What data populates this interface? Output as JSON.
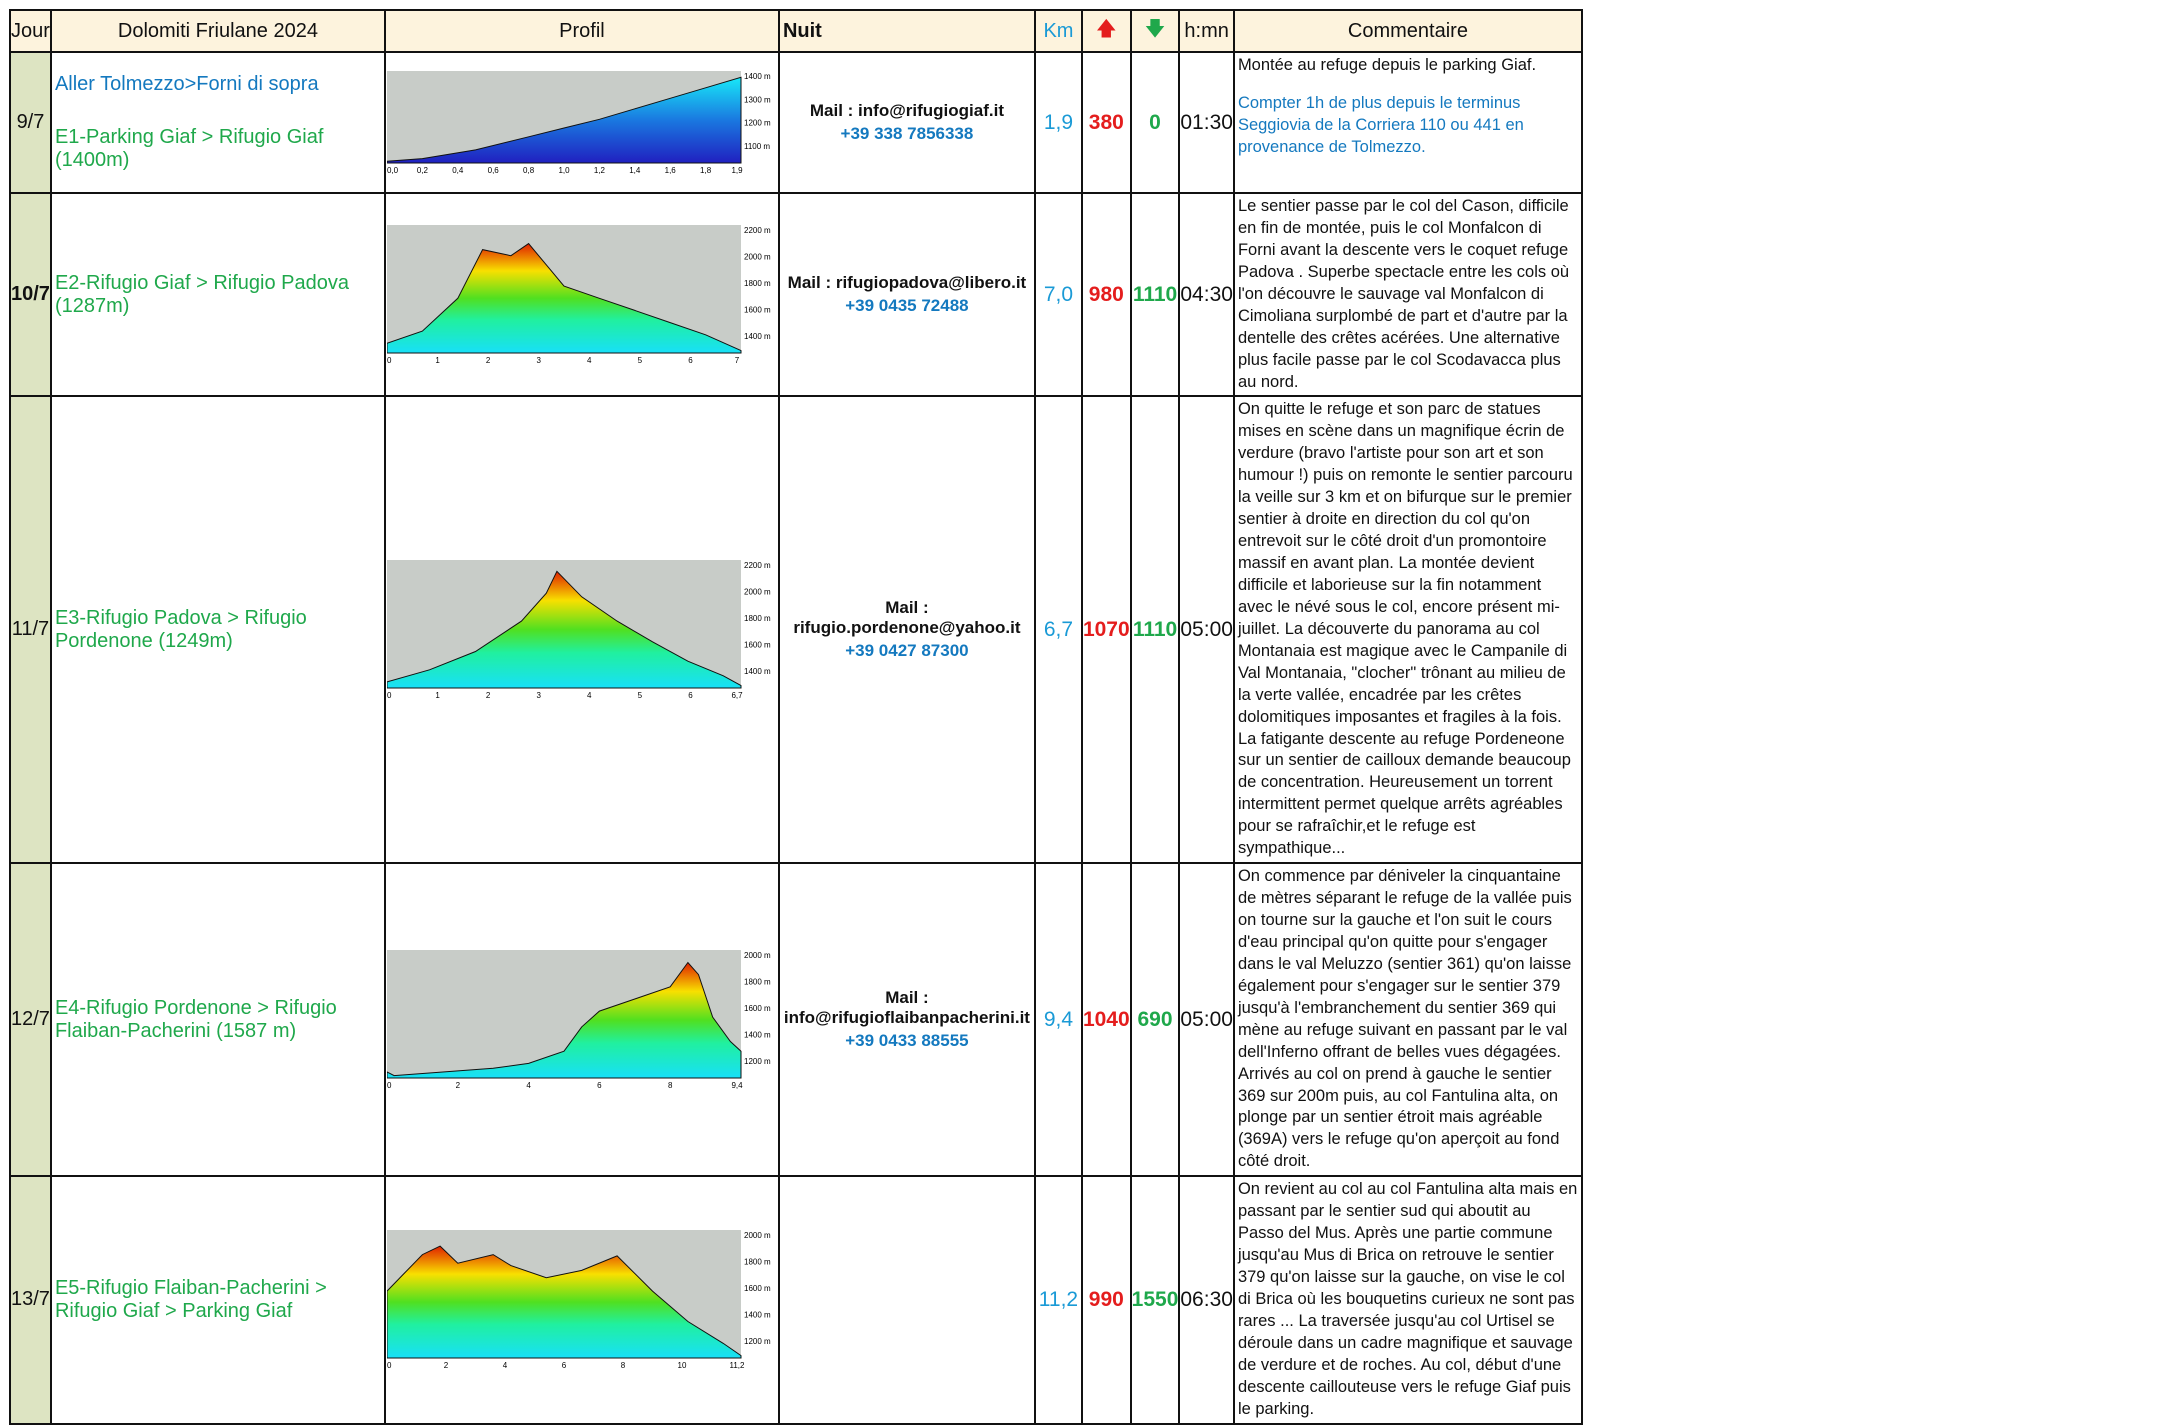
{
  "header": {
    "jour": "Jour",
    "title": "Dolomiti Friulane 2024",
    "profil": "Profil",
    "nuit": "Nuit",
    "km": "Km",
    "up_icon": "🡅",
    "down_icon": "🡇",
    "duration": "h:mn",
    "commentaire": "Commentaire"
  },
  "rows": [
    {
      "jour": "9/7",
      "aller": "Aller Tolmezzo>Forni di sopra",
      "etape": "E1-Parking Giaf > Rifugio Giaf (1400m)",
      "mail": "Mail : info@rifugiogiaf.it",
      "tel": "+39 338 7856338",
      "km": "1,9",
      "up": "380",
      "down": "0",
      "duration": "01:30",
      "comment": "Montée au refuge depuis le parking Giaf.",
      "comment_blue": "Compter 1h de plus depuis le terminus Seggiovia de la Corriera 110 ou 441 en provenance de Tolmezzo.",
      "profile": {
        "x_ticks": [
          "0,0",
          "0,2",
          "0,4",
          "0,6",
          "0,8",
          "1,0",
          "1,2",
          "1,4",
          "1,6",
          "1,8",
          "1,9"
        ],
        "y_ticks": [
          "1400 m",
          "1300 m",
          "1200 m",
          "1100 m"
        ]
      }
    },
    {
      "jour": "10/7",
      "etape": "E2-Rifugio Giaf > Rifugio Padova (1287m)",
      "mail": "Mail : rifugiopadova@libero.it",
      "tel": "+39 0435 72488",
      "km": "7,0",
      "up": "980",
      "down": "1110",
      "duration": "04:30",
      "comment": "Le sentier passe par le col del Cason, difficile en fin de montée, puis le col Monfalcon di Forni avant la descente vers le coquet refuge Padova . Superbe spectacle entre les cols où l'on découvre le sauvage val Monfalcon di Cimoliana surplombé de part et d'autre par la dentelle des crêtes acérées. Une alternative plus facile passe par le col Scodavacca  plus au nord.",
      "profile": {
        "x_ticks": [
          "0",
          "1",
          "2",
          "3",
          "4",
          "5",
          "6",
          "7"
        ],
        "y_ticks": [
          "2200 m",
          "2000 m",
          "1800 m",
          "1600 m",
          "1400 m"
        ]
      }
    },
    {
      "jour": "11/7",
      "etape": "E3-Rifugio Padova  > Rifugio Pordenone (1249m)",
      "mail": "Mail : rifugio.pordenone@yahoo.it",
      "tel": "+39 0427 87300",
      "km": "6,7",
      "up": "1070",
      "down": "1110",
      "duration": "05:00",
      "comment": "On quitte le refuge et son parc de statues mises en scène dans un magnifique écrin de verdure (bravo l'artiste pour son art et son humour !) puis on remonte le sentier parcouru la veille sur 3 km et on bifurque sur le premier sentier à droite en direction du col qu'on entrevoit sur le côté droit d'un promontoire massif en avant plan. La montée devient difficile et laborieuse sur la fin notamment avec le névé sous le col, encore présent mi-juillet. La découverte du panorama au col Montanaia est magique avec le Campanile di Val Montanaia, \"clocher\" trônant au milieu de la verte vallée, encadrée par les crêtes dolomitiques imposantes et fragiles à la fois. La fatigante descente au refuge Pordeneone sur un sentier de cailloux demande beaucoup de concentration. Heureusement un torrent intermittent permet quelque arrêts agréables pour se rafraîchir,et le refuge est sympathique...",
      "profile": {
        "x_ticks": [
          "0",
          "1",
          "2",
          "3",
          "4",
          "5",
          "6",
          "6,7"
        ],
        "y_ticks": [
          "2200 m",
          "2000 m",
          "1800 m",
          "1600 m",
          "1400 m"
        ]
      }
    },
    {
      "jour": "12/7",
      "etape": "E4-Rifugio Pordenone > Rifugio Flaiban-Pacherini (1587 m)",
      "mail": "Mail : info@rifugioflaibanpacherini.it",
      "tel": "+39 0433 88555",
      "km": "9,4",
      "up": "1040",
      "down": "690",
      "duration": "05:00",
      "comment": "On commence par déniveler la cinquantaine de mètres séparant le refuge de la vallée puis on tourne sur la gauche et l'on suit le cours d'eau principal qu'on quitte pour s'engager dans le val Meluzzo (sentier 361) qu'on laisse également pour s'engager sur le sentier 379 jusqu'à l'embranchement du sentier 369 qui mène au  refuge suivant en passant par le val dell'Inferno offrant de belles vues dégagées. Arrivés au col on prend à gauche le sentier 369 sur 200m puis, au col Fantulina alta, on plonge par un sentier étroit mais agréable (369A) vers le refuge qu'on aperçoit au fond côté droit.",
      "profile": {
        "x_ticks": [
          "0",
          "2",
          "4",
          "6",
          "8",
          "9,4"
        ],
        "y_ticks": [
          "2000 m",
          "1800 m",
          "1600 m",
          "1400 m",
          "1200 m"
        ]
      }
    },
    {
      "jour": "13/7",
      "etape": "E5-Rifugio Flaiban-Pacherini > Rifugio Giaf > Parking Giaf",
      "mail": "",
      "tel": "",
      "km": "11,2",
      "up": "990",
      "down": "1550",
      "duration": "06:30",
      "comment": "On revient au col au col Fantulina alta mais en passant par le sentier sud qui aboutit au Passo del Mus. Après une partie commune jusqu'au Mus di Brica on retrouve le sentier 379 qu'on laisse sur la gauche, on vise le col di Brica où les bouquetins curieux ne sont pas rares ... La traversée jusqu'au col Urtisel se déroule dans un cadre magnifique et sauvage de verdure et de roches. Au col, début d'une descente caillouteuse vers le refuge Giaf puis le parking.",
      "profile": {
        "x_ticks": [
          "0",
          "2",
          "4",
          "6",
          "8",
          "10",
          "11,2"
        ],
        "y_ticks": [
          "2000 m",
          "1800 m",
          "1600 m",
          "1400 m",
          "1200 m"
        ]
      }
    }
  ]
}
